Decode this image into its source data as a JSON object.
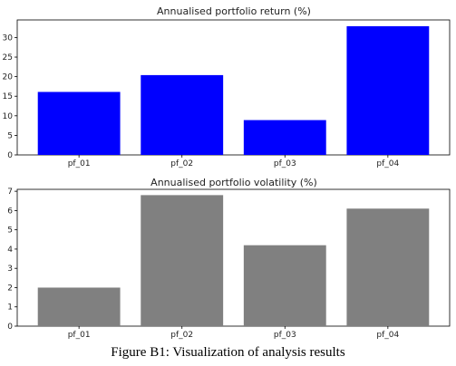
{
  "caption": "Figure B1: Visualization of analysis results",
  "chart_data": [
    {
      "type": "bar",
      "title": "Annualised portfolio return (%)",
      "xlabel": "",
      "ylabel": "",
      "categories": [
        "pf_01",
        "pf_02",
        "pf_03",
        "pf_04"
      ],
      "values": [
        16.1,
        20.4,
        8.9,
        32.9
      ],
      "ylim": [
        0,
        34.5
      ],
      "yticks": [
        0,
        5,
        10,
        15,
        20,
        25,
        30
      ],
      "color": "#0000ff",
      "grid": false
    },
    {
      "type": "bar",
      "title": "Annualised portfolio volatility (%)",
      "xlabel": "",
      "ylabel": "",
      "categories": [
        "pf_01",
        "pf_02",
        "pf_03",
        "pf_04"
      ],
      "values": [
        2.0,
        6.8,
        4.2,
        6.1
      ],
      "ylim": [
        0,
        7.1
      ],
      "yticks": [
        0,
        1,
        2,
        3,
        4,
        5,
        6,
        7
      ],
      "color": "#808080",
      "grid": false
    }
  ]
}
